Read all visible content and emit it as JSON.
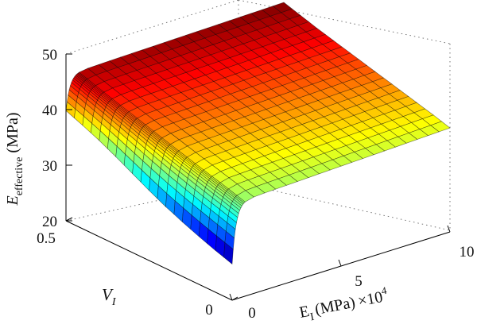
{
  "chart_data": {
    "type": "surface",
    "zlabel": {
      "var": "E",
      "sub": "effective",
      "unit": "(MPa)"
    },
    "xlabel": {
      "var": "E",
      "sub": "I",
      "unit": "(MPa)",
      "multiplier": "×10",
      "exponent": "4"
    },
    "ylabel": {
      "var": "V",
      "sub": "I"
    },
    "z_ticks": [
      "20",
      "30",
      "40",
      "50"
    ],
    "x_ticks": [
      "0",
      "5",
      "10"
    ],
    "y_ticks": [
      "0",
      "0.5"
    ],
    "xlim": [
      0,
      10
    ],
    "ylim": [
      0,
      0.5
    ],
    "zlim": [
      20,
      50
    ],
    "grid": true,
    "colormap": "jet",
    "surface": {
      "v_values": [
        0,
        0.05,
        0.1,
        0.15,
        0.2,
        0.25,
        0.3,
        0.35,
        0.4,
        0.45,
        0.5
      ],
      "z_at_EI_0": [
        26.5,
        27.5,
        28.6,
        29.8,
        31.1,
        32.6,
        34.2,
        35.8,
        37.3,
        38.6,
        39.8
      ],
      "z_plateau_at_EI_10": [
        38.7,
        39.6,
        40.4,
        41.2,
        42.0,
        42.8,
        43.6,
        44.4,
        45.2,
        46.1,
        47.0
      ]
    }
  }
}
